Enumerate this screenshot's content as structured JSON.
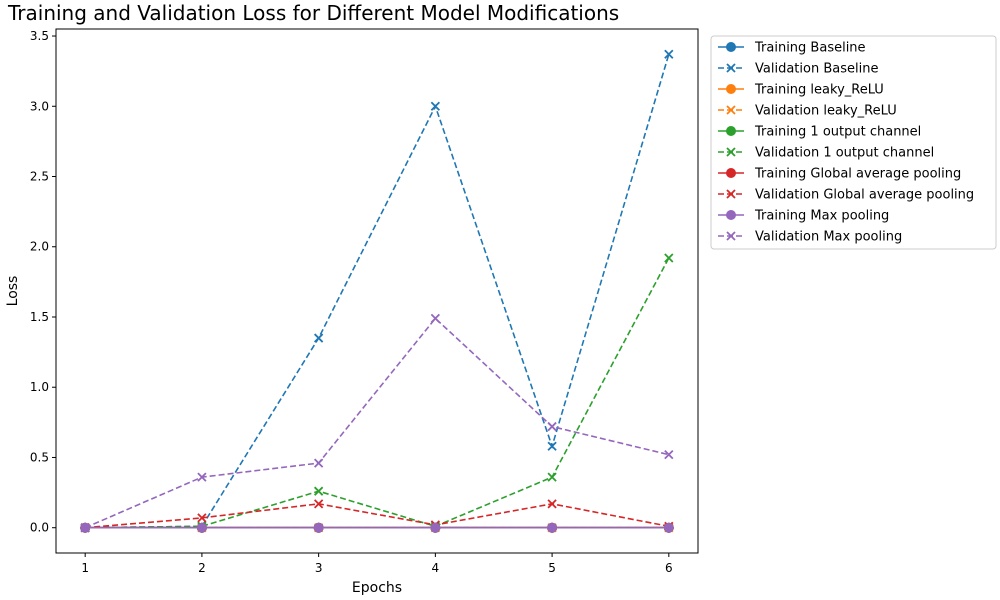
{
  "chart_data": {
    "type": "line",
    "title": "Training and Validation Loss for Different Model Modifications",
    "xlabel": "Epochs",
    "ylabel": "Loss",
    "x": [
      1,
      2,
      3,
      4,
      5,
      6
    ],
    "xticks": [
      "1",
      "2",
      "3",
      "4",
      "5",
      "6"
    ],
    "xlim": [
      0.75,
      6.25
    ],
    "ylim": [
      -0.18,
      3.55
    ],
    "yticks": [
      "0.0",
      "0.5",
      "1.0",
      "1.5",
      "2.0",
      "2.5",
      "3.0",
      "3.5"
    ],
    "grid": false,
    "legend": "outside-top-right",
    "series": [
      {
        "name": "Training Baseline",
        "color": "#1f77b4",
        "style": "solid",
        "marker": "circle",
        "values": [
          0.0,
          0.0,
          0.0,
          0.0,
          0.0,
          0.0
        ]
      },
      {
        "name": "Validation Baseline",
        "color": "#1f77b4",
        "style": "dashed",
        "marker": "x",
        "values": [
          0.0,
          0.01,
          1.35,
          3.0,
          0.58,
          3.37
        ]
      },
      {
        "name": "Training leaky_ReLU",
        "color": "#ff7f0e",
        "style": "solid",
        "marker": "circle",
        "values": [
          0.0,
          0.0,
          0.0,
          0.0,
          0.0,
          0.0
        ]
      },
      {
        "name": "Validation leaky_ReLU",
        "color": "#ff7f0e",
        "style": "dashed",
        "marker": "x",
        "values": [
          0.0,
          0.0,
          0.0,
          0.0,
          0.0,
          0.0
        ]
      },
      {
        "name": "Training 1 output channel",
        "color": "#2ca02c",
        "style": "solid",
        "marker": "circle",
        "values": [
          0.0,
          0.0,
          0.0,
          0.0,
          0.0,
          0.0
        ]
      },
      {
        "name": "Validation 1 output channel",
        "color": "#2ca02c",
        "style": "dashed",
        "marker": "x",
        "values": [
          0.0,
          0.01,
          0.26,
          0.01,
          0.36,
          1.92
        ]
      },
      {
        "name": "Training Global average pooling",
        "color": "#d62728",
        "style": "solid",
        "marker": "circle",
        "values": [
          0.0,
          0.0,
          0.0,
          0.0,
          0.0,
          0.0
        ]
      },
      {
        "name": "Validation Global average pooling",
        "color": "#d62728",
        "style": "dashed",
        "marker": "x",
        "values": [
          0.0,
          0.07,
          0.17,
          0.02,
          0.17,
          0.01
        ]
      },
      {
        "name": "Training Max pooling",
        "color": "#9467bd",
        "style": "solid",
        "marker": "circle",
        "values": [
          0.0,
          0.0,
          0.0,
          0.0,
          0.0,
          0.0
        ]
      },
      {
        "name": "Validation Max pooling",
        "color": "#9467bd",
        "style": "dashed",
        "marker": "x",
        "values": [
          0.0,
          0.36,
          0.46,
          1.49,
          0.72,
          0.52
        ]
      }
    ]
  }
}
